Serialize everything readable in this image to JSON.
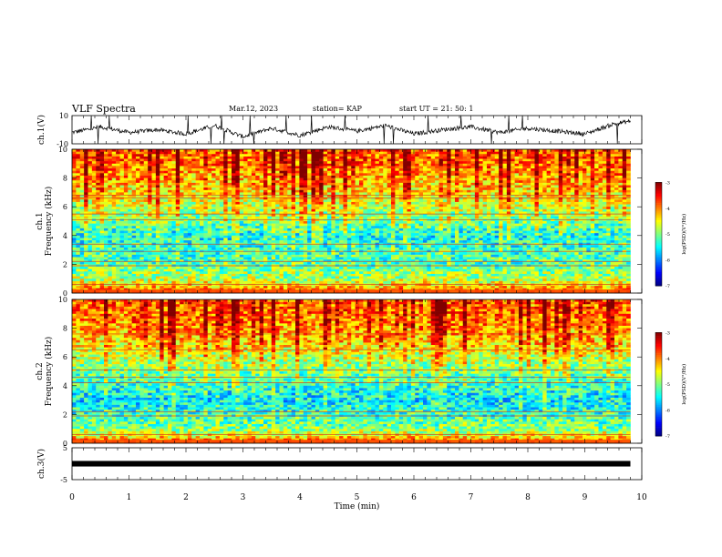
{
  "header": {
    "title": "VLF Spectra",
    "date": "Mar.12, 2023",
    "station": "station= KAP",
    "start": "start  UT =   21: 50: 1"
  },
  "chart_data": [
    {
      "type": "line",
      "panel": "ch1-waveform",
      "ylabel": "ch.1(V)",
      "yticks": [
        "10",
        "-10"
      ],
      "ylim": [
        -10,
        10
      ],
      "xlim": [
        0,
        10
      ],
      "x_extent": 9.8,
      "series_color": "#000000",
      "approx_envelope": [
        {
          "x": 0.0,
          "y": -2
        },
        {
          "x": 0.5,
          "y": 2
        },
        {
          "x": 1.0,
          "y": -2
        },
        {
          "x": 1.5,
          "y": 0
        },
        {
          "x": 2.0,
          "y": -3
        },
        {
          "x": 2.5,
          "y": 3
        },
        {
          "x": 3.0,
          "y": -5
        },
        {
          "x": 3.5,
          "y": 1
        },
        {
          "x": 4.0,
          "y": -4
        },
        {
          "x": 4.5,
          "y": 2
        },
        {
          "x": 5.0,
          "y": -1
        },
        {
          "x": 5.5,
          "y": 3
        },
        {
          "x": 6.0,
          "y": -3
        },
        {
          "x": 6.5,
          "y": 0
        },
        {
          "x": 7.0,
          "y": 2
        },
        {
          "x": 7.5,
          "y": -2
        },
        {
          "x": 8.0,
          "y": 1
        },
        {
          "x": 8.5,
          "y": -1
        },
        {
          "x": 9.0,
          "y": -3
        },
        {
          "x": 9.5,
          "y": 4
        },
        {
          "x": 9.8,
          "y": 6
        }
      ]
    },
    {
      "type": "heatmap",
      "panel": "ch1-spectrogram",
      "ylabel": "ch.1\nFrequency (kHz)",
      "ylabel_line1": "ch.1",
      "ylabel_line2": "Frequency (kHz)",
      "yticks": [
        "0",
        "2",
        "4",
        "6",
        "8",
        "10"
      ],
      "ylim": [
        0,
        10
      ],
      "xlim": [
        0,
        10
      ],
      "x_extent": 9.8,
      "colorbar": {
        "label": "log(PSD)(V²/Hz)",
        "ticks": [
          "-3",
          "-4",
          "-5",
          "-6",
          "-7"
        ],
        "range": [
          -7,
          -3
        ]
      },
      "freq_profile_log_psd": [
        {
          "f": 0.0,
          "v": -3.6
        },
        {
          "f": 0.4,
          "v": -4.2
        },
        {
          "f": 1.0,
          "v": -4.8
        },
        {
          "f": 2.0,
          "v": -5.2
        },
        {
          "f": 3.0,
          "v": -5.3
        },
        {
          "f": 4.0,
          "v": -5.5
        },
        {
          "f": 5.0,
          "v": -5.1
        },
        {
          "f": 6.0,
          "v": -4.8
        },
        {
          "f": 7.0,
          "v": -4.5
        },
        {
          "f": 8.0,
          "v": -4.3
        },
        {
          "f": 9.0,
          "v": -4.1
        },
        {
          "f": 10.0,
          "v": -4.0
        }
      ],
      "line_frequencies_khz": [
        0.6,
        1.9,
        2.2,
        2.9,
        3.4,
        5.1,
        5.5,
        6.6,
        6.8
      ]
    },
    {
      "type": "heatmap",
      "panel": "ch2-spectrogram",
      "ylabel": "ch.2\nFrequency (kHz)",
      "ylabel_line1": "ch.2",
      "ylabel_line2": "Frequency (kHz)",
      "yticks": [
        "0",
        "2",
        "4",
        "6",
        "8",
        "10"
      ],
      "ylim": [
        0,
        10
      ],
      "xlim": [
        0,
        10
      ],
      "x_extent": 9.8,
      "colorbar": {
        "label": "log(PSD)(V²/Hz)",
        "ticks": [
          "-3",
          "-4",
          "-5",
          "-6",
          "-7"
        ],
        "range": [
          -7,
          -3
        ]
      },
      "freq_profile_log_psd": [
        {
          "f": 0.0,
          "v": -3.6
        },
        {
          "f": 0.4,
          "v": -4.3
        },
        {
          "f": 1.0,
          "v": -5.0
        },
        {
          "f": 2.0,
          "v": -5.3
        },
        {
          "f": 3.0,
          "v": -5.6
        },
        {
          "f": 4.0,
          "v": -5.4
        },
        {
          "f": 5.0,
          "v": -5.1
        },
        {
          "f": 6.0,
          "v": -4.8
        },
        {
          "f": 7.0,
          "v": -4.4
        },
        {
          "f": 8.0,
          "v": -4.2
        },
        {
          "f": 9.0,
          "v": -4.1
        },
        {
          "f": 10.0,
          "v": -4.0
        }
      ],
      "line_frequencies_khz": [
        0.6,
        1.9,
        2.2,
        4.2,
        4.6,
        5.1,
        6.5,
        7.6
      ]
    },
    {
      "type": "line",
      "panel": "ch3-waveform",
      "ylabel": "ch.3(V)",
      "yticks": [
        "5",
        "-5"
      ],
      "ylim": [
        -5,
        5
      ],
      "xlim": [
        0,
        10
      ],
      "x_extent": 9.8,
      "xlabel": "Time (min)",
      "xticks": [
        "0",
        "1",
        "2",
        "3",
        "4",
        "5",
        "6",
        "7",
        "8",
        "9",
        "10"
      ],
      "band": {
        "y_low": -0.3,
        "y_high": 0.3
      },
      "series_color": "#000000"
    }
  ]
}
